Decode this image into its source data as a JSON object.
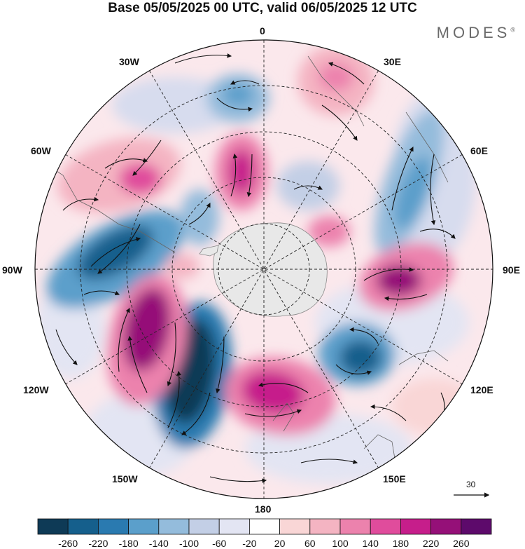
{
  "title": "Base 05/05/2025 00 UTC, valid 06/05/2025 12 UTC",
  "brand": "MODES",
  "brand_mark": "®",
  "longitude_labels": {
    "top": "0",
    "e30": "30E",
    "e60": "60E",
    "e90": "90E",
    "e120": "120E",
    "e150": "150E",
    "bottom": "180",
    "w150": "150W",
    "w120": "120W",
    "w90": "90W",
    "w60": "60W",
    "w30": "30W"
  },
  "reference_vector": "30",
  "colorbar": {
    "colors": [
      "#0e3a56",
      "#155f8c",
      "#2a7ab0",
      "#5b9fcb",
      "#94bcdc",
      "#c3cfe6",
      "#e3e5f3",
      "#ffffff",
      "#f9d6d6",
      "#f4b4c2",
      "#ec82ad",
      "#e04c9c",
      "#c61e8b",
      "#951078",
      "#5d0a6b"
    ],
    "labels": [
      "-260",
      "-220",
      "-180",
      "-140",
      "-100",
      "-60",
      "-20",
      "20",
      "60",
      "100",
      "140",
      "180",
      "220",
      "260"
    ]
  },
  "icon": "south-polar-stereographic-map"
}
